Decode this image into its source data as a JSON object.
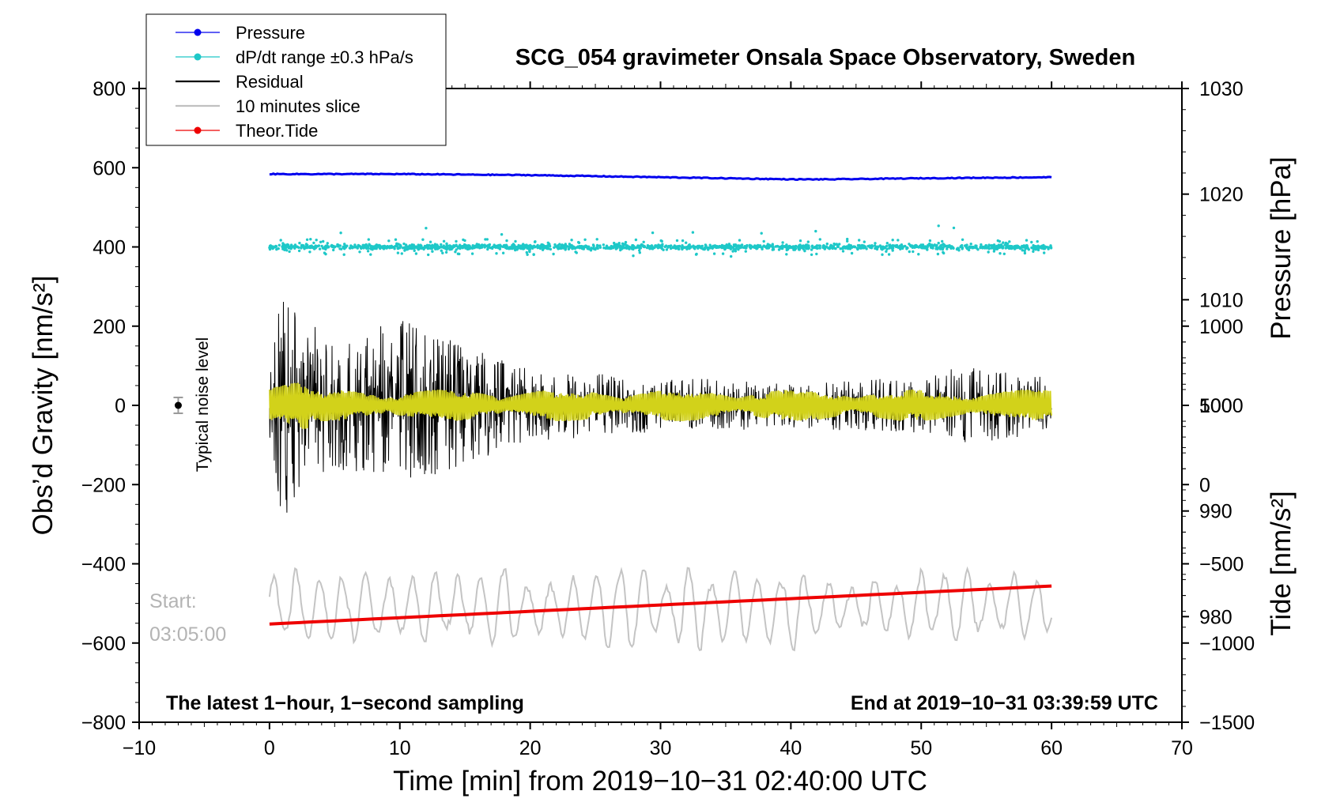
{
  "chart_data": {
    "type": "line",
    "title": "SCG_054 gravimeter Onsala Space Observatory, Sweden",
    "xlabel": "Time [min] from 2019−10−31 02:40:00 UTC",
    "ylabel_left": "Obs’d Gravity [nm/s²]",
    "ylabel_pressure": "Pressure [hPa]",
    "ylabel_tide": "Tide [nm/s²]",
    "xlim": [
      -10,
      70
    ],
    "ylim_left": [
      -800,
      800
    ],
    "ylim_pressure": [
      970,
      1030
    ],
    "ylim_tide": [
      -1500,
      2500
    ],
    "x_ticks": [
      "−10",
      "0",
      "10",
      "20",
      "30",
      "40",
      "50",
      "60",
      "70"
    ],
    "y_left_ticks": [
      "800",
      "600",
      "400",
      "200",
      "0",
      "−200",
      "−400",
      "−600",
      "−800"
    ],
    "y_pressure_ticks": [
      "1030",
      "1020",
      "1010",
      "1000",
      "990",
      "980"
    ],
    "y_tide_ticks": [
      "1000",
      "500",
      "0",
      "−500",
      "−1000",
      "−1500"
    ],
    "legend": [
      {
        "label": "Pressure",
        "color": "#0000ee",
        "marker": true
      },
      {
        "label": "dP/dt range ±0.3 hPa/s",
        "color": "#1ec8c8",
        "marker": true
      },
      {
        "label": "Residual",
        "color": "#000000",
        "marker": false
      },
      {
        "label": "10 minutes slice",
        "color": "#c0c0c0",
        "marker": false
      },
      {
        "label": "Theor.Tide",
        "color": "#ee0000",
        "marker": true
      }
    ],
    "series": [
      {
        "name": "Pressure",
        "axis": "pressure",
        "x": [
          0,
          10,
          20,
          30,
          40,
          43,
          50,
          60
        ],
        "values": [
          1021.9,
          1021.9,
          1021.8,
          1021.6,
          1021.4,
          1021.4,
          1021.5,
          1021.6
        ]
      },
      {
        "name": "dP/dt range ±0.3 hPa/s",
        "axis": "left",
        "center": 400,
        "range_nm": [
          -50,
          50
        ]
      },
      {
        "name": "Residual",
        "axis": "left",
        "envelope_x": [
          0,
          1,
          2,
          5,
          8,
          10,
          15,
          20,
          30,
          40,
          50,
          53,
          60
        ],
        "envelope_amp": [
          80,
          330,
          230,
          170,
          200,
          220,
          150,
          90,
          70,
          60,
          70,
          100,
          70
        ]
      },
      {
        "name": "10 minutes slice",
        "axis": "left",
        "center": -510,
        "amplitude": 110
      },
      {
        "name": "Theor.Tide",
        "axis": "tide",
        "x": [
          0,
          60
        ],
        "values": [
          -880,
          -640
        ]
      }
    ],
    "annotations": {
      "noise_label": "Typical noise level",
      "noise_value": 0,
      "noise_err": 20,
      "start_label": "Start:",
      "start_time": "03:05:00",
      "footer_left": "The latest 1−hour, 1−second sampling",
      "footer_right": "End at 2019−10−31 03:39:59 UTC"
    }
  }
}
